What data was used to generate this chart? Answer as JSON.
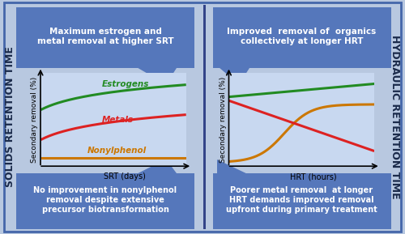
{
  "bg_color": "#b8c8e0",
  "panel_bg": "#c8d8f0",
  "outer_border_color": "#4466aa",
  "text_color_dark": "#1a2a4a",
  "left_side_label": "SOLIDS RETENTION TIME",
  "right_side_label": "HYDRAULIC RETENTION TIME",
  "left_top_text": "Maximum estrogen and\nmetal removal at higher SRT",
  "left_bottom_text": "No improvement in nonylphenol\nremoval despite extensive\nprecursor biotransformation",
  "right_top_text": "Improved  removal of  organics\ncollectively at longer HRT",
  "right_bottom_text": "Poorer metal removal  at longer\nHRT demands improved removal\nupfront during primary treatment",
  "left_xlabel": "SRT (days)",
  "right_xlabel": "HRT (hours)",
  "ylabel": "Secondary removal (%)",
  "box_color": "#5577bb",
  "divider_color": "#334488",
  "green": "#228b22",
  "red": "#dd2222",
  "orange": "#cc7700",
  "label_fontsize": 7.5,
  "side_label_fontsize": 9
}
